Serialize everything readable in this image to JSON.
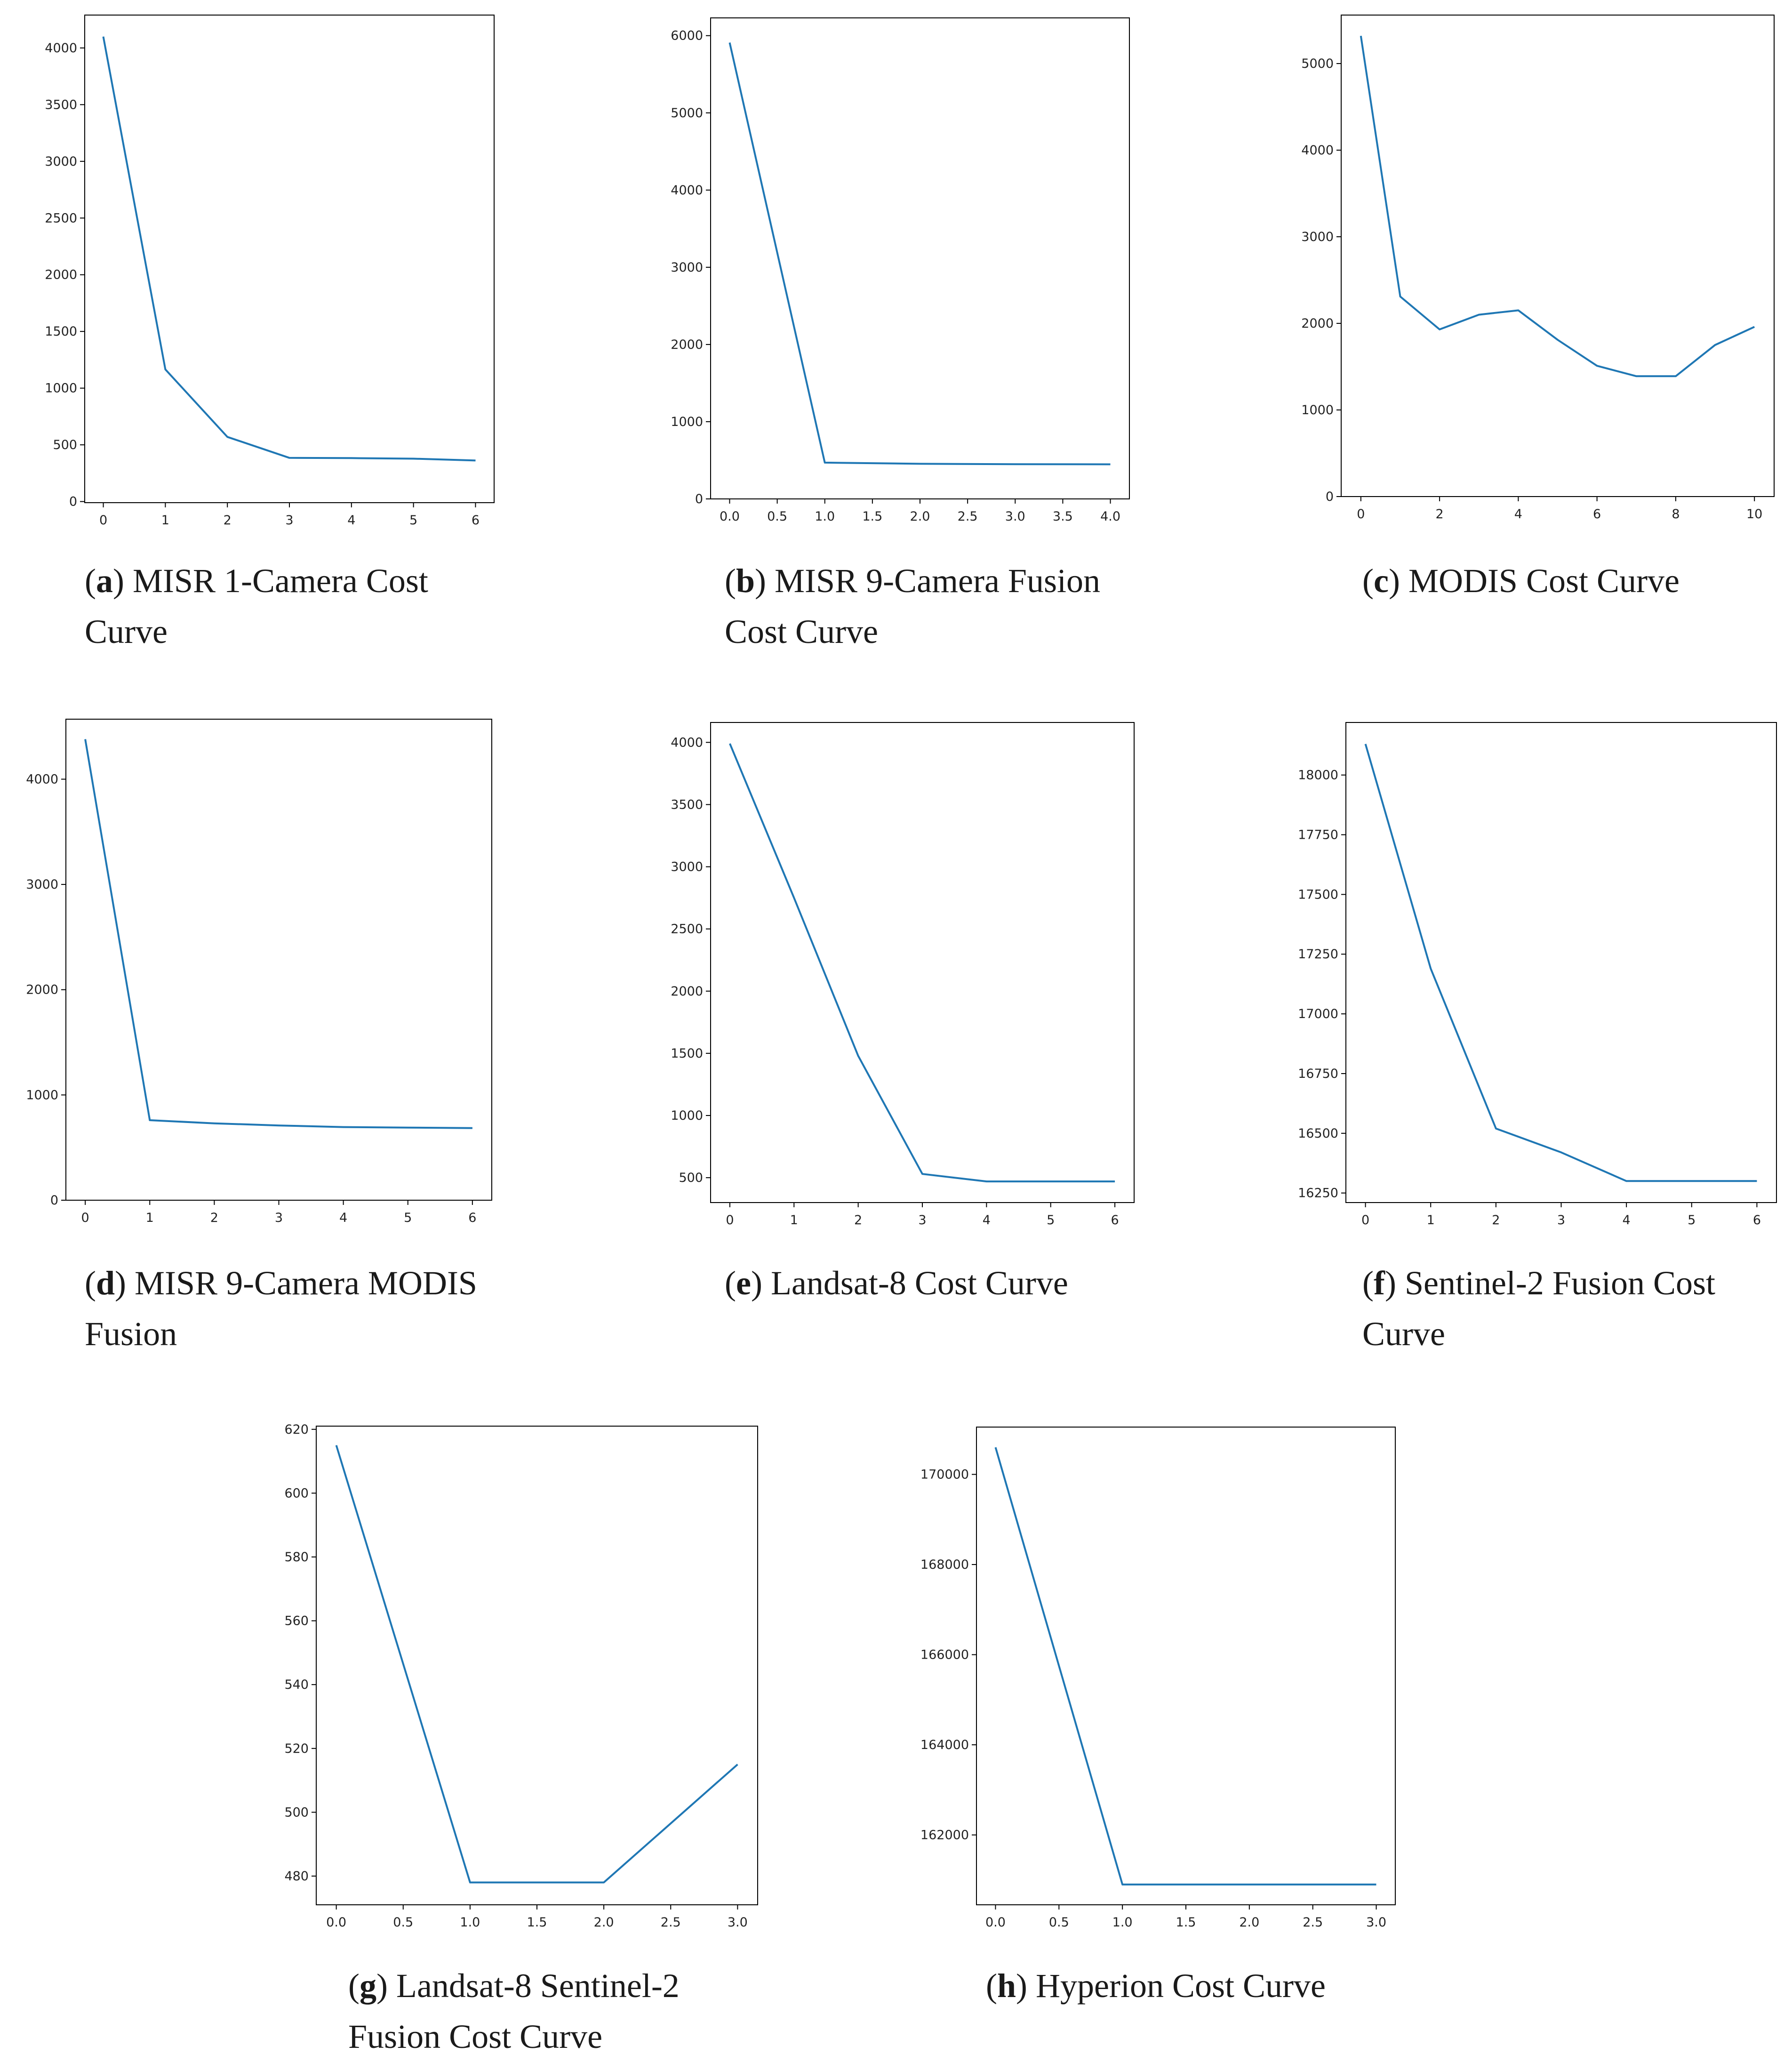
{
  "style": {
    "line_color": "#1f77b4",
    "axis_color": "#000000",
    "text_color": "#222222"
  },
  "chart_data": [
    {
      "id": "a",
      "type": "line",
      "caption_letter": "a",
      "caption_text": "MISR 1-Camera Cost Curve",
      "x": [
        0,
        1,
        2,
        3,
        4,
        5,
        6
      ],
      "y": [
        4100,
        1165,
        570,
        385,
        383,
        378,
        362
      ],
      "xlim": [
        -0.3,
        6.3
      ],
      "ylim": [
        -10,
        4290
      ],
      "xticks": [
        0,
        1,
        2,
        3,
        4,
        5,
        6
      ],
      "xtick_labels": [
        "0",
        "1",
        "2",
        "3",
        "4",
        "5",
        "6"
      ],
      "yticks": [
        0,
        500,
        1000,
        1500,
        2000,
        2500,
        3000,
        3500,
        4000
      ],
      "ytick_labels": [
        "0",
        "500",
        "1000",
        "1500",
        "2000",
        "2500",
        "3000",
        "3500",
        "4000"
      ]
    },
    {
      "id": "b",
      "type": "line",
      "caption_letter": "b",
      "caption_text": "MISR 9-Camera Fusion Cost Curve",
      "x": [
        0,
        1,
        2,
        3,
        4
      ],
      "y": [
        5910,
        470,
        455,
        450,
        448
      ],
      "xlim": [
        -0.2,
        4.2
      ],
      "ylim": [
        0,
        6230
      ],
      "xticks": [
        0,
        0.5,
        1,
        1.5,
        2,
        2.5,
        3,
        3.5,
        4
      ],
      "xtick_labels": [
        "0.0",
        "0.5",
        "1.0",
        "1.5",
        "2.0",
        "2.5",
        "3.0",
        "3.5",
        "4.0"
      ],
      "yticks": [
        0,
        1000,
        2000,
        3000,
        4000,
        5000,
        6000
      ],
      "ytick_labels": [
        "0",
        "1000",
        "2000",
        "3000",
        "4000",
        "5000",
        "6000"
      ]
    },
    {
      "id": "c",
      "type": "line",
      "caption_letter": "c",
      "caption_text": "MODIS Cost Curve",
      "x": [
        0,
        1,
        2,
        3,
        4,
        5,
        6,
        7,
        8,
        9,
        10
      ],
      "y": [
        5320,
        2310,
        1930,
        2100,
        2150,
        1810,
        1510,
        1390,
        1390,
        1750,
        1960
      ],
      "xlim": [
        -0.5,
        10.5
      ],
      "ylim": [
        0,
        5560
      ],
      "xticks": [
        0,
        2,
        4,
        6,
        8,
        10
      ],
      "xtick_labels": [
        "0",
        "2",
        "4",
        "6",
        "8",
        "10"
      ],
      "yticks": [
        0,
        1000,
        2000,
        3000,
        4000,
        5000
      ],
      "ytick_labels": [
        "0",
        "1000",
        "2000",
        "3000",
        "4000",
        "5000"
      ]
    },
    {
      "id": "d",
      "type": "line",
      "caption_letter": "d",
      "caption_text": "MISR 9-Camera MODIS Fusion",
      "x": [
        0,
        1,
        2,
        3,
        4,
        5,
        6
      ],
      "y": [
        4380,
        760,
        730,
        710,
        695,
        690,
        685
      ],
      "xlim": [
        -0.3,
        6.3
      ],
      "ylim": [
        0,
        4570
      ],
      "xticks": [
        0,
        1,
        2,
        3,
        4,
        5,
        6
      ],
      "xtick_labels": [
        "0",
        "1",
        "2",
        "3",
        "4",
        "5",
        "6"
      ],
      "yticks": [
        0,
        1000,
        2000,
        3000,
        4000
      ],
      "ytick_labels": [
        "0",
        "1000",
        "2000",
        "3000",
        "4000"
      ]
    },
    {
      "id": "e",
      "type": "line",
      "caption_letter": "e",
      "caption_text": "Landsat-8 Cost Curve",
      "x": [
        0,
        1,
        2,
        3,
        4,
        5,
        6
      ],
      "y": [
        3990,
        2750,
        1480,
        530,
        470,
        470,
        470
      ],
      "xlim": [
        -0.3,
        6.3
      ],
      "ylim": [
        300,
        4160
      ],
      "xticks": [
        0,
        1,
        2,
        3,
        4,
        5,
        6
      ],
      "xtick_labels": [
        "0",
        "1",
        "2",
        "3",
        "4",
        "5",
        "6"
      ],
      "yticks": [
        500,
        1000,
        1500,
        2000,
        2500,
        3000,
        3500,
        4000
      ],
      "ytick_labels": [
        "500",
        "1000",
        "1500",
        "2000",
        "2500",
        "3000",
        "3500",
        "4000"
      ]
    },
    {
      "id": "f",
      "type": "line",
      "caption_letter": "f",
      "caption_text": "Sentinel-2 Fusion Cost Curve",
      "x": [
        0,
        1,
        2,
        3,
        4,
        5,
        6
      ],
      "y": [
        18130,
        17190,
        16520,
        16420,
        16300,
        16300,
        16300
      ],
      "xlim": [
        -0.3,
        6.3
      ],
      "ylim": [
        16210,
        18220
      ],
      "xticks": [
        0,
        1,
        2,
        3,
        4,
        5,
        6
      ],
      "xtick_labels": [
        "0",
        "1",
        "2",
        "3",
        "4",
        "5",
        "6"
      ],
      "yticks": [
        16250,
        16500,
        16750,
        17000,
        17250,
        17500,
        17750,
        18000
      ],
      "ytick_labels": [
        "16250",
        "16500",
        "16750",
        "17000",
        "17250",
        "17500",
        "17750",
        "18000"
      ]
    },
    {
      "id": "g",
      "type": "line",
      "caption_letter": "g",
      "caption_text": "Landsat-8 Sentinel-2 Fusion Cost Curve",
      "x": [
        0,
        1,
        2,
        3
      ],
      "y": [
        615,
        478,
        478,
        515
      ],
      "xlim": [
        -0.15,
        3.15
      ],
      "ylim": [
        471,
        621
      ],
      "xticks": [
        0,
        0.5,
        1,
        1.5,
        2,
        2.5,
        3
      ],
      "xtick_labels": [
        "0.0",
        "0.5",
        "1.0",
        "1.5",
        "2.0",
        "2.5",
        "3.0"
      ],
      "yticks": [
        480,
        500,
        520,
        540,
        560,
        580,
        600,
        620
      ],
      "ytick_labels": [
        "480",
        "500",
        "520",
        "540",
        "560",
        "580",
        "600",
        "620"
      ]
    },
    {
      "id": "h",
      "type": "line",
      "caption_letter": "h",
      "caption_text": "Hyperion Cost Curve",
      "x": [
        0,
        1,
        2,
        3
      ],
      "y": [
        170600,
        160900,
        160900,
        160900
      ],
      "xlim": [
        -0.15,
        3.15
      ],
      "ylim": [
        160450,
        171050
      ],
      "xticks": [
        0,
        0.5,
        1,
        1.5,
        2,
        2.5,
        3
      ],
      "xtick_labels": [
        "0.0",
        "0.5",
        "1.0",
        "1.5",
        "2.0",
        "2.5",
        "3.0"
      ],
      "yticks": [
        162000,
        164000,
        166000,
        168000,
        170000
      ],
      "ytick_labels": [
        "162000",
        "164000",
        "166000",
        "168000",
        "170000"
      ]
    }
  ]
}
